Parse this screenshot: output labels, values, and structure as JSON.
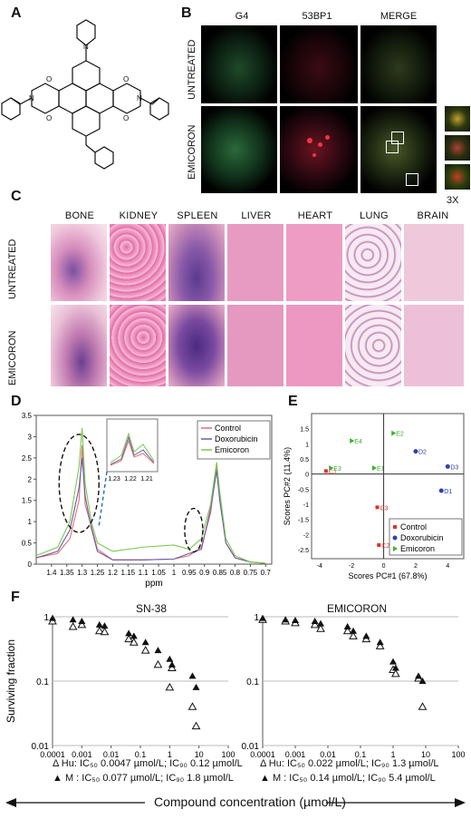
{
  "panels": {
    "A": "A",
    "B": "B",
    "C": "C",
    "D": "D",
    "E": "E",
    "F": "F"
  },
  "panelB": {
    "columns": [
      "G4",
      "53BP1",
      "MERGE"
    ],
    "rows": [
      "UNTREATED",
      "EMICORON"
    ],
    "zoom_label": "3X"
  },
  "panelC": {
    "tissues": [
      "BONE",
      "KIDNEY",
      "SPLEEN",
      "LIVER",
      "HEART",
      "LUNG",
      "BRAIN"
    ],
    "rows": [
      "UNTREATED",
      "EMICORON"
    ]
  },
  "panelD": {
    "xlabel": "ppm",
    "legend": [
      "Control",
      "Doxorubicin",
      "Emicoron"
    ],
    "inset_ticks": [
      "1.23",
      "1.22",
      "1.21"
    ],
    "colors": {
      "control": "#e07070",
      "doxorubicin": "#6a5aa8",
      "emicoron": "#7ac850"
    }
  },
  "panelE": {
    "legend": [
      "Control",
      "Doxorubicin",
      "Emicoron"
    ],
    "colors": {
      "control": "#e03030",
      "doxorubicin": "#3040b0",
      "emicoron": "#40b030"
    }
  },
  "panelF": {
    "left_title": "SN-38",
    "right_title": "EMICORON",
    "ylabel": "Surviving fraction",
    "xlabel": "Compound concentration (µmol/L)",
    "left_legend_hu": "Δ Hu: IC₅₀ 0.0047 µmol/L;  IC₉₀ 0.12 µmol/L",
    "left_legend_m": "▲ M : IC₅₀ 0.077 µmol/L;  IC₉₀ 1.8 µmol/L",
    "right_legend_hu": "Δ Hu: IC₅₀ 0.022 µmol/L; IC₉₀ 1.3 µmol/L",
    "right_legend_m": "▲ M : IC₅₀ 0.14 µmol/L;   IC₉₀ 5.4 µmol/L"
  },
  "chart_data": [
    {
      "type": "line",
      "panel": "D",
      "xlabel": "ppm",
      "ylabel": "",
      "xlim": [
        1.45,
        0.68
      ],
      "ylim": [
        0,
        3.5
      ],
      "x_ticks": [
        1.4,
        1.35,
        1.3,
        1.25,
        1.2,
        1.15,
        1.1,
        1.05,
        1,
        0.95,
        0.9,
        0.85,
        0.8,
        0.75,
        0.7
      ],
      "y_ticks": [
        0,
        0.5,
        1,
        1.5,
        2,
        2.5,
        3,
        3.5
      ],
      "series": [
        {
          "name": "Control",
          "x": [
            1.45,
            1.38,
            1.34,
            1.31,
            1.3,
            1.29,
            1.27,
            1.25,
            1.2,
            1.1,
            1.0,
            0.95,
            0.91,
            0.88,
            0.86,
            0.85,
            0.83,
            0.8,
            0.75,
            0.7
          ],
          "y": [
            0.15,
            0.25,
            0.6,
            1.5,
            2.8,
            1.4,
            0.9,
            0.35,
            0.1,
            0.1,
            0.12,
            0.2,
            0.4,
            1.2,
            2.3,
            1.6,
            0.5,
            0.15,
            0.05,
            0.02
          ]
        },
        {
          "name": "Doxorubicin",
          "x": [
            1.45,
            1.38,
            1.34,
            1.31,
            1.3,
            1.29,
            1.27,
            1.25,
            1.2,
            1.1,
            1.0,
            0.95,
            0.91,
            0.88,
            0.86,
            0.85,
            0.83,
            0.8,
            0.75,
            0.7
          ],
          "y": [
            0.15,
            0.3,
            0.8,
            1.8,
            2.5,
            1.6,
            0.85,
            0.3,
            0.1,
            0.1,
            0.12,
            0.25,
            0.35,
            1.3,
            2.2,
            1.5,
            0.5,
            0.15,
            0.05,
            0.02
          ]
        },
        {
          "name": "Emicoron",
          "x": [
            1.45,
            1.38,
            1.34,
            1.31,
            1.3,
            1.29,
            1.27,
            1.25,
            1.2,
            1.1,
            1.0,
            0.95,
            0.91,
            0.88,
            0.86,
            0.85,
            0.83,
            0.8,
            0.75,
            0.7
          ],
          "y": [
            0.2,
            0.4,
            1.0,
            2.3,
            3.2,
            1.9,
            1.0,
            0.5,
            0.3,
            0.4,
            0.45,
            0.35,
            0.6,
            1.4,
            2.4,
            1.7,
            0.6,
            0.2,
            0.05,
            0.02
          ]
        }
      ]
    },
    {
      "type": "scatter",
      "panel": "E",
      "xlabel": "Scores PC#1 (67.8%)",
      "ylabel": "Scores PC#2 (11.4%)",
      "xlim": [
        -4.5,
        5
      ],
      "ylim": [
        -2.8,
        2
      ],
      "x_ticks": [
        -4,
        -2,
        0,
        2,
        4
      ],
      "y_ticks": [
        -2.5,
        -2,
        -1.5,
        -1,
        -0.5,
        0,
        0.5,
        1,
        1.5
      ],
      "series": [
        {
          "name": "Control",
          "points": [
            {
              "label": "C1",
              "x": -3.6,
              "y": 0.1
            },
            {
              "label": "C3",
              "x": -0.4,
              "y": -1.1
            },
            {
              "label": "C2",
              "x": -0.3,
              "y": -2.35
            }
          ]
        },
        {
          "name": "Doxorubicin",
          "points": [
            {
              "label": "D2",
              "x": 2.0,
              "y": 0.75
            },
            {
              "label": "D3",
              "x": 4.0,
              "y": 0.25
            },
            {
              "label": "D1",
              "x": 3.6,
              "y": -0.55
            }
          ]
        },
        {
          "name": "Emicoron",
          "points": [
            {
              "label": "E4",
              "x": -2.0,
              "y": 1.1
            },
            {
              "label": "E2",
              "x": 0.6,
              "y": 1.35
            },
            {
              "label": "E3",
              "x": -3.3,
              "y": 0.2
            },
            {
              "label": "E1",
              "x": -0.6,
              "y": 0.2
            }
          ]
        }
      ]
    },
    {
      "type": "scatter",
      "panel": "F-left",
      "title": "SN-38",
      "ylabel": "Surviving fraction",
      "log_x": true,
      "log_y": true,
      "xlim": [
        0.0001,
        100
      ],
      "ylim": [
        0.01,
        1
      ],
      "x_ticks": [
        "0.0001",
        "0.001",
        "0.01",
        "0.1",
        "1",
        "10",
        "100"
      ],
      "y_ticks": [
        "0.01",
        "0.1",
        "1"
      ],
      "series": [
        {
          "name": "Hu",
          "x": [
            0.0001,
            0.0005,
            0.001,
            0.004,
            0.006,
            0.04,
            0.06,
            0.15,
            0.4,
            1,
            1.2,
            6,
            8
          ],
          "y": [
            0.85,
            0.7,
            0.75,
            0.6,
            0.58,
            0.45,
            0.4,
            0.3,
            0.18,
            0.08,
            0.16,
            0.04,
            0.02
          ]
        },
        {
          "name": "M",
          "x": [
            0.0001,
            0.0005,
            0.001,
            0.004,
            0.006,
            0.04,
            0.06,
            0.15,
            0.4,
            1,
            1.2,
            6,
            8
          ],
          "y": [
            0.95,
            0.9,
            0.85,
            0.75,
            0.72,
            0.55,
            0.5,
            0.4,
            0.3,
            0.22,
            0.18,
            0.12,
            0.08
          ]
        }
      ]
    },
    {
      "type": "scatter",
      "panel": "F-right",
      "title": "EMICORON",
      "log_x": true,
      "log_y": true,
      "xlim": [
        0.0001,
        100
      ],
      "ylim": [
        0.01,
        1
      ],
      "x_ticks": [
        "0.0001",
        "0.001",
        "0.01",
        "0.1",
        "1",
        "10",
        "100"
      ],
      "y_ticks": [
        "0.01",
        "0.1",
        "1"
      ],
      "series": [
        {
          "name": "Hu",
          "x": [
            0.0001,
            0.0005,
            0.001,
            0.004,
            0.006,
            0.04,
            0.06,
            0.15,
            0.4,
            1,
            1.2,
            6,
            8
          ],
          "y": [
            0.9,
            0.85,
            0.8,
            0.75,
            0.65,
            0.6,
            0.5,
            0.45,
            0.35,
            0.15,
            0.13,
            0.11,
            0.04
          ]
        },
        {
          "name": "M",
          "x": [
            0.0001,
            0.0005,
            0.001,
            0.004,
            0.006,
            0.04,
            0.06,
            0.15,
            0.4,
            1,
            1.2,
            6,
            8
          ],
          "y": [
            0.95,
            0.9,
            0.88,
            0.85,
            0.78,
            0.7,
            0.6,
            0.5,
            0.4,
            0.2,
            0.16,
            0.12,
            0.1
          ]
        }
      ]
    }
  ]
}
